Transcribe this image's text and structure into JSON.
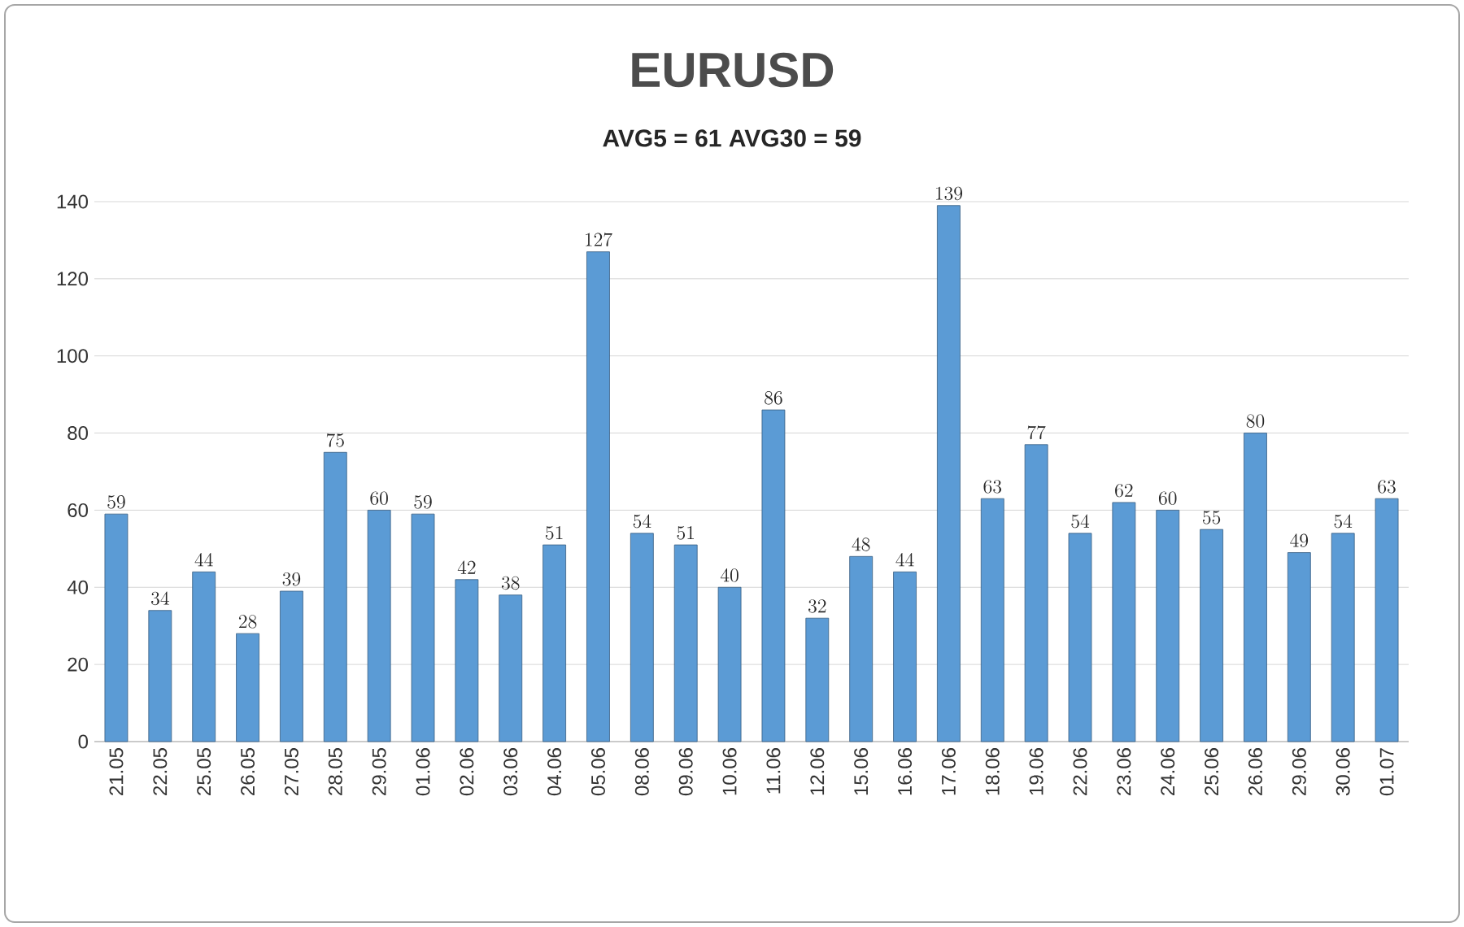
{
  "chart_data": {
    "type": "bar",
    "title": "EURUSD",
    "subtitle": "AVG5 = 61 AVG30 = 59",
    "categories": [
      "21.05",
      "22.05",
      "25.05",
      "26.05",
      "27.05",
      "28.05",
      "29.05",
      "01.06",
      "02.06",
      "03.06",
      "04.06",
      "05.06",
      "08.06",
      "09.06",
      "10.06",
      "11.06",
      "12.06",
      "15.06",
      "16.06",
      "17.06",
      "18.06",
      "19.06",
      "22.06",
      "23.06",
      "24.06",
      "25.06",
      "26.06",
      "29.06",
      "30.06",
      "01.07"
    ],
    "values": [
      59,
      34,
      44,
      28,
      39,
      75,
      60,
      59,
      42,
      38,
      51,
      127,
      54,
      51,
      40,
      86,
      32,
      48,
      44,
      139,
      63,
      77,
      54,
      62,
      60,
      55,
      80,
      49,
      54,
      63
    ],
    "color": "#5b9bd5",
    "ylim": [
      0,
      140
    ],
    "yticks": [
      0,
      20,
      40,
      60,
      80,
      100,
      120,
      140
    ],
    "grid": "y",
    "data_labels": true
  }
}
